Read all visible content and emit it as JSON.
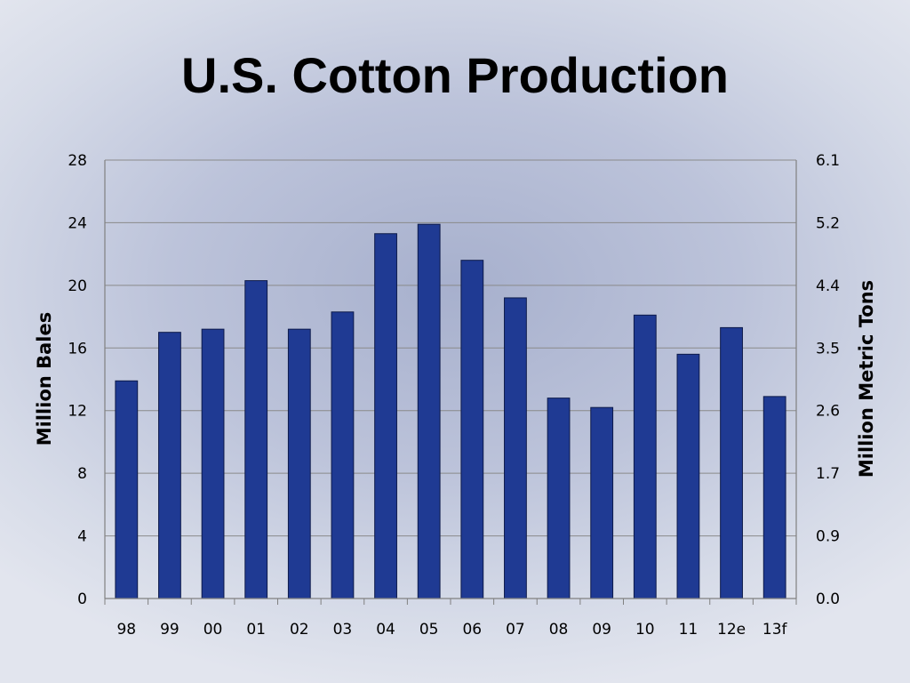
{
  "slide": {
    "title": "U.S. Cotton Production"
  },
  "chart_data": {
    "type": "bar",
    "categories": [
      "98",
      "99",
      "00",
      "01",
      "02",
      "03",
      "04",
      "05",
      "06",
      "07",
      "08",
      "09",
      "10",
      "11",
      "12e",
      "13f"
    ],
    "series": [
      {
        "values": [
          13.9,
          17.0,
          17.2,
          20.3,
          17.2,
          18.3,
          23.3,
          23.9,
          21.6,
          19.2,
          12.8,
          12.2,
          18.1,
          15.6,
          17.3,
          12.9
        ]
      }
    ],
    "ylabel": "Million Bales",
    "ylim": [
      0,
      28
    ],
    "yticks": [
      "0",
      "4",
      "8",
      "12",
      "16",
      "20",
      "24",
      "28"
    ],
    "y2label": "Million Metric Tons",
    "y2ticks": [
      "0.0",
      "0.9",
      "1.7",
      "2.6",
      "3.5",
      "4.4",
      "5.2",
      "6.1"
    ],
    "grid": true,
    "bar_color": "#1f3a93"
  }
}
